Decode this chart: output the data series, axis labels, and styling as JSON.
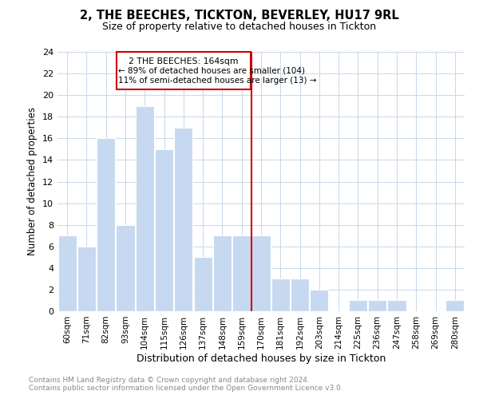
{
  "title": "2, THE BEECHES, TICKTON, BEVERLEY, HU17 9RL",
  "subtitle": "Size of property relative to detached houses in Tickton",
  "xlabel": "Distribution of detached houses by size in Tickton",
  "ylabel": "Number of detached properties",
  "categories": [
    "60sqm",
    "71sqm",
    "82sqm",
    "93sqm",
    "104sqm",
    "115sqm",
    "126sqm",
    "137sqm",
    "148sqm",
    "159sqm",
    "170sqm",
    "181sqm",
    "192sqm",
    "203sqm",
    "214sqm",
    "225sqm",
    "236sqm",
    "247sqm",
    "258sqm",
    "269sqm",
    "280sqm"
  ],
  "values": [
    7,
    6,
    16,
    8,
    19,
    15,
    17,
    5,
    7,
    7,
    7,
    3,
    3,
    2,
    0,
    1,
    1,
    1,
    0,
    0,
    1
  ],
  "bar_color": "#c6d9f0",
  "bar_edgecolor": "#ffffff",
  "property_line_x": 9.5,
  "annotation_line1": "2 THE BEECHES: 164sqm",
  "annotation_line2": "← 89% of detached houses are smaller (104)",
  "annotation_line3": "11% of semi-detached houses are larger (13) →",
  "annotation_box_color": "#cc0000",
  "ylim": [
    0,
    24
  ],
  "yticks": [
    0,
    2,
    4,
    6,
    8,
    10,
    12,
    14,
    16,
    18,
    20,
    22,
    24
  ],
  "footer_line1": "Contains HM Land Registry data © Crown copyright and database right 2024.",
  "footer_line2": "Contains public sector information licensed under the Open Government Licence v3.0.",
  "background_color": "#ffffff",
  "grid_color": "#c8d8e8"
}
